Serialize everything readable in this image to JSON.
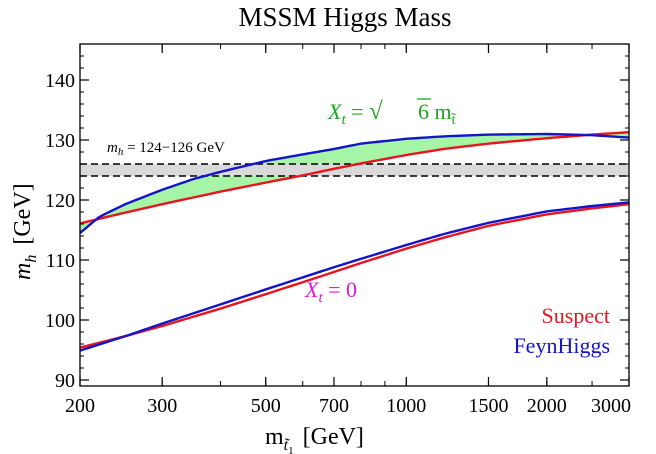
{
  "chart_data": {
    "type": "line",
    "title": "MSSM Higgs Mass",
    "xlabel": {
      "base": "m",
      "sub": "t̃",
      "subsub": "1",
      "unit": "[GeV]"
    },
    "ylabel": {
      "base": "m",
      "sub": "h",
      "unit": "[GeV]"
    },
    "x_scale": "log",
    "xlim": [
      200,
      3000
    ],
    "ylim": [
      89,
      146
    ],
    "x_ticks": [
      200,
      300,
      500,
      700,
      1000,
      1500,
      2000,
      3000
    ],
    "x_tick_labels": [
      "200",
      "300",
      "500",
      "700",
      "1000",
      "1500",
      "2000",
      "3000"
    ],
    "y_ticks": [
      90,
      100,
      110,
      120,
      130,
      140
    ],
    "y_tick_labels": [
      "90",
      "100",
      "110",
      "120",
      "130",
      "140"
    ],
    "band": {
      "label": "m_h = 124−126 GeV",
      "label_text": {
        "m": "m",
        "sub": "h",
        "rest": " = 124−126 GeV"
      },
      "y_low": 124,
      "y_high": 126
    },
    "series": [
      {
        "name": "Suspect",
        "color": "#e8141e",
        "group": "Xt_sqrt6",
        "x": [
          200,
          250,
          300,
          400,
          500,
          600,
          700,
          800,
          1000,
          1200,
          1500,
          2000,
          2500,
          3000
        ],
        "y": [
          116.1,
          117.9,
          119.3,
          121.4,
          122.9,
          124.1,
          125.2,
          126.1,
          127.5,
          128.5,
          129.4,
          130.3,
          130.9,
          131.3
        ]
      },
      {
        "name": "FeynHiggs",
        "color": "#1414c8",
        "group": "Xt_sqrt6",
        "x": [
          200,
          220,
          250,
          280,
          300,
          350,
          400,
          500,
          600,
          700,
          800,
          1000,
          1200,
          1500,
          2000,
          2500,
          3000
        ],
        "y": [
          114.5,
          117.2,
          119.3,
          120.8,
          121.7,
          123.5,
          124.7,
          126.5,
          127.6,
          128.5,
          129.4,
          130.2,
          130.6,
          130.9,
          131.0,
          130.8,
          130.4
        ]
      },
      {
        "name": "Suspect",
        "color": "#e8141e",
        "group": "Xt_0",
        "x": [
          200,
          250,
          300,
          400,
          500,
          600,
          700,
          800,
          1000,
          1200,
          1500,
          2000,
          2500,
          3000
        ],
        "y": [
          95.4,
          97.3,
          99.0,
          101.9,
          104.3,
          106.3,
          108.0,
          109.5,
          111.9,
          113.7,
          115.7,
          117.6,
          118.6,
          119.3
        ]
      },
      {
        "name": "FeynHiggs",
        "color": "#1414c8",
        "group": "Xt_0",
        "x": [
          200,
          250,
          300,
          400,
          500,
          600,
          700,
          800,
          1000,
          1200,
          1500,
          2000,
          2500,
          3000
        ],
        "y": [
          94.9,
          97.3,
          99.4,
          102.6,
          105.1,
          107.1,
          108.8,
          110.2,
          112.5,
          114.3,
          116.2,
          118.1,
          119.0,
          119.6
        ]
      }
    ],
    "annotations": [
      {
        "id": "xt_sqrt6",
        "text": {
          "X": "X",
          "sub": "t",
          "eq": " = ",
          "sqrt": "√",
          "six": "6",
          "m": " m",
          "msub": "t̃"
        },
        "color": "#1aa81a"
      },
      {
        "id": "xt_0",
        "text": {
          "X": "X",
          "sub": "t",
          "rest": " = 0"
        },
        "color": "#e614e6"
      }
    ],
    "legend": {
      "position": "bottom-right",
      "entries": [
        "Suspect",
        "FeynHiggs"
      ],
      "colors": [
        "#e8141e",
        "#1414c8"
      ]
    },
    "fill_between_color": "#a6f5a6",
    "grid": false
  }
}
